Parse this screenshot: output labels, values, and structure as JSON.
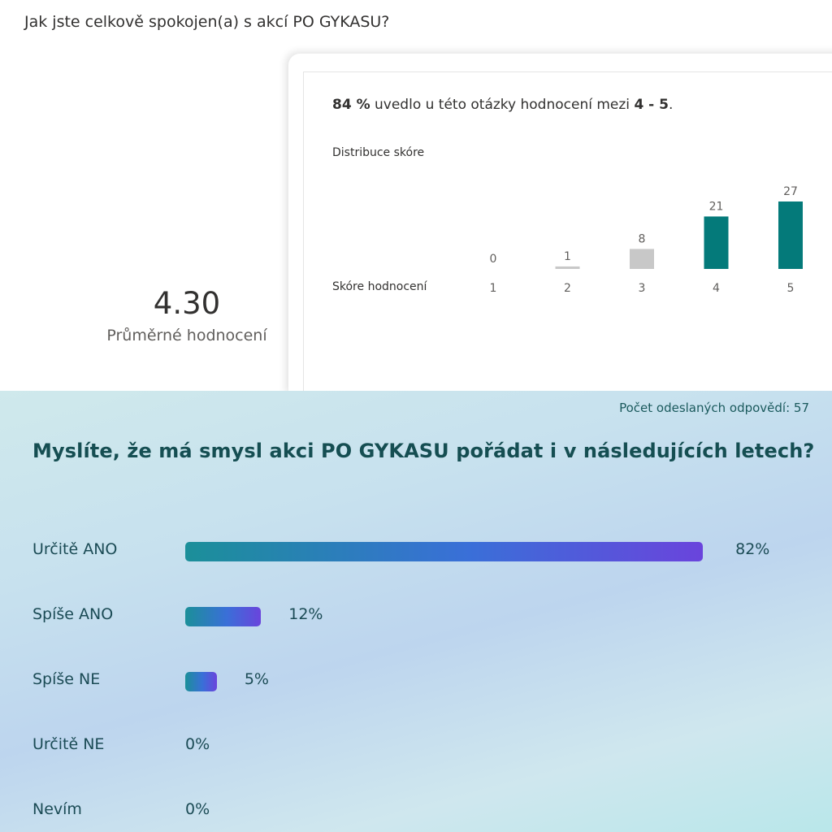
{
  "question1": {
    "title": "Jak jste celkově spokojen(a) s akcí PO GYKASU?",
    "average_value": "4.30",
    "average_label": "Průměrné hodnocení",
    "summary": {
      "percent": "84 %",
      "text": " uvedlo u této otázky hodnocení mezi ",
      "range": "4 - 5",
      "end": "."
    },
    "distribution_label": "Distribuce skóre",
    "score_axis_label": "Skóre hodnocení"
  },
  "question2": {
    "response_count": "Počet odeslaných odpovědí: 57",
    "title": "Myslíte, že má smysl akci PO GYKASU pořádat i v následujících letech?",
    "options": [
      {
        "label": "Určitě ANO",
        "percent_text": "82%",
        "percent": 82
      },
      {
        "label": "Spíše ANO",
        "percent_text": "12%",
        "percent": 12
      },
      {
        "label": "Spíše NE",
        "percent_text": "5%",
        "percent": 5
      },
      {
        "label": "Určitě NE",
        "percent_text": "0%",
        "percent": 0
      },
      {
        "label": "Nevím",
        "percent_text": "0%",
        "percent": 0
      }
    ]
  },
  "colors": {
    "bar_high": "#047a7a",
    "bar_low": "#c8c8c8",
    "question2_title": "#154e52"
  },
  "chart_data": {
    "type": "bar",
    "categories": [
      "1",
      "2",
      "3",
      "4",
      "5"
    ],
    "values": [
      0,
      1,
      8,
      21,
      27
    ],
    "title": "Distribuce skóre",
    "xlabel": "Skóre hodnocení",
    "ylabel": ""
  }
}
